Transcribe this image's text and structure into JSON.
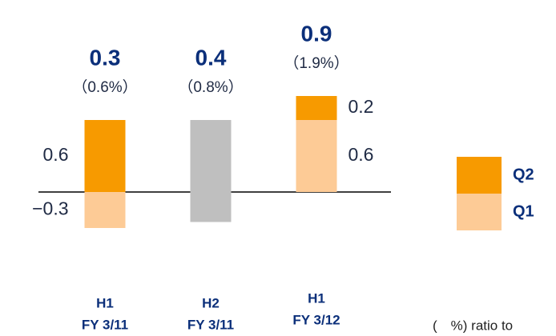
{
  "chart_data": {
    "type": "stacked_bar",
    "categories": [
      [
        "H1",
        "FY 3/11"
      ],
      [
        "H2",
        "FY 3/11"
      ],
      [
        "H1",
        "FY 3/12"
      ]
    ],
    "series": [
      {
        "name": "Q1",
        "color": "#fdcb96",
        "values": [
          -0.3,
          null,
          0.6
        ],
        "value_labels": [
          "−0.3",
          null,
          "0.6"
        ]
      },
      {
        "name": "Q2",
        "color": "#f79a00",
        "values": [
          0.6,
          null,
          0.2
        ],
        "value_labels": [
          "0.6",
          null,
          "0.2"
        ]
      },
      {
        "color": "#bfbfbf",
        "values": [
          null,
          0.6,
          null
        ]
      },
      {
        "color": "#bfbfbf",
        "values": [
          null,
          -0.25,
          null
        ]
      }
    ],
    "totals": [
      0.3,
      0.4,
      0.9
    ],
    "ratios": [
      0.6,
      0.8,
      1.9
    ],
    "ratio_labels": [
      "（0.6%）",
      "（0.8%）",
      "（1.9%）"
    ],
    "ylim": [
      -1.2,
      1.6
    ],
    "legend": "right",
    "footnote": "(　%) ratio to"
  }
}
